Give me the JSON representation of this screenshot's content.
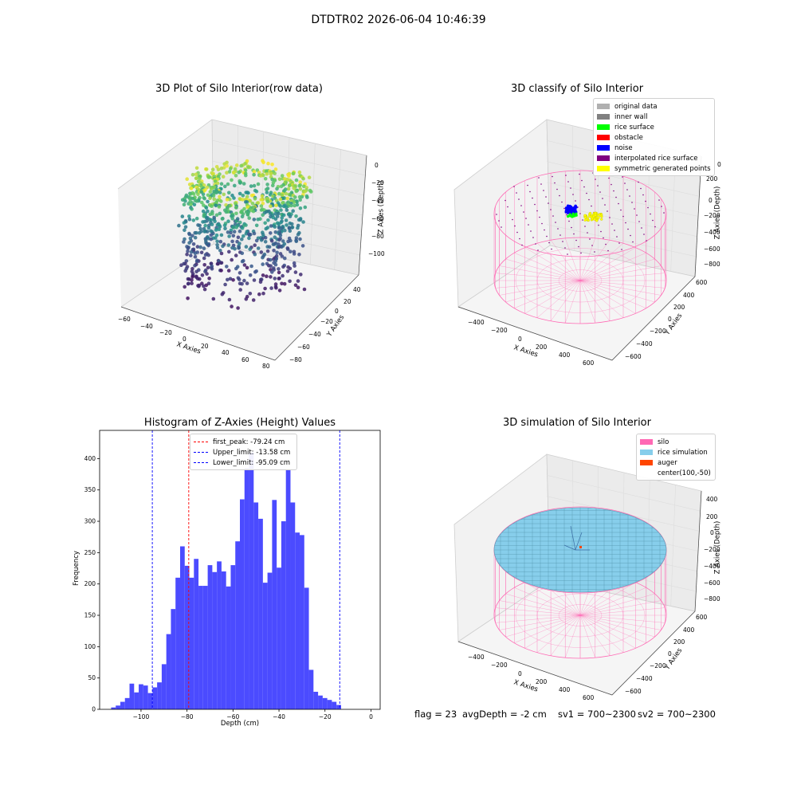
{
  "figure": {
    "suptitle": "DTDTR02 2026-06-04 10:46:39"
  },
  "status": {
    "flag": "flag = 23",
    "avg_depth": "avgDepth = -2 cm",
    "sv1": "sv1 = 700~2300",
    "sv2": "sv2 = 700~2300"
  },
  "colors": {
    "silo": "#ff69b4",
    "rice_simulation": "#87ceeb",
    "auger": "#ff4500",
    "histogram_bar": "#4b4bff",
    "first_peak_line": "#ff0000",
    "limit_line": "#0000ff",
    "original_data": "#b0b0b0",
    "inner_wall": "#808080",
    "rice_surface": "#00ff00",
    "obstacle": "#ff0000",
    "noise": "#0000ff",
    "interpolated_rice_surface": "#800080",
    "symmetric_generated_points": "#ffff00"
  },
  "chart_data": [
    {
      "type": "scatter",
      "title": "3D Plot of Silo Interior(row data)",
      "xlabel": "X Axies",
      "ylabel": "Y Axies",
      "zlabel": "Z Axies (Depth)",
      "x_ticks": [
        "−60",
        "−40",
        "−20",
        "0",
        "20",
        "40",
        "60",
        "80"
      ],
      "y_ticks": [
        "−80",
        "−60",
        "−40",
        "−20",
        "0",
        "20",
        "40"
      ],
      "z_ticks": [
        "0",
        "−20",
        "−40",
        "−60",
        "−80",
        "−100"
      ],
      "xlim": [
        -65,
        85
      ],
      "ylim": [
        -85,
        50
      ],
      "zlim": [
        -115,
        5
      ],
      "colormap": "viridis"
    },
    {
      "type": "scatter",
      "title": "3D classify of Silo Interior",
      "xlabel": "X Axies",
      "ylabel": "Y Axies",
      "zlabel": "Z Axies (Depth)",
      "x_ticks": [
        "−400",
        "−200",
        "0",
        "200",
        "400",
        "600"
      ],
      "y_ticks": [
        "−600",
        "−400",
        "−200",
        "0",
        "200",
        "400",
        "600"
      ],
      "z_ticks": [
        "200",
        "0",
        "−200",
        "−400",
        "−600",
        "−800"
      ],
      "z_top_tick_partial": "0",
      "legend": [
        {
          "label": "original data",
          "color": "#b0b0b0"
        },
        {
          "label": "inner wall",
          "color": "#808080"
        },
        {
          "label": "rice surface",
          "color": "#00ff00"
        },
        {
          "label": "obstacle",
          "color": "#ff0000"
        },
        {
          "label": "noise",
          "color": "#0000ff"
        },
        {
          "label": "interpolated rice surface",
          "color": "#800080"
        },
        {
          "label": "symmetric generated points",
          "color": "#ffff00"
        }
      ]
    },
    {
      "type": "bar",
      "title": "Histogram of Z-Axies (Height) Values",
      "xlabel": "Depth (cm)",
      "ylabel": "Frequency",
      "xlim": [
        -118,
        4
      ],
      "ylim": [
        0,
        445
      ],
      "x_ticks": [
        -100,
        -80,
        -60,
        -40,
        -20,
        0
      ],
      "x_tick_labels": [
        "−100",
        "−80",
        "−60",
        "−40",
        "−20",
        "0"
      ],
      "y_ticks": [
        0,
        50,
        100,
        150,
        200,
        250,
        300,
        350,
        400
      ],
      "y_tick_labels": [
        "0",
        "50",
        "100",
        "150",
        "200",
        "250",
        "300",
        "350",
        "400"
      ],
      "bin_start": -113.0,
      "bin_width": 2.0,
      "values": [
        3,
        6,
        12,
        18,
        41,
        27,
        40,
        38,
        26,
        35,
        43,
        72,
        120,
        160,
        210,
        260,
        229,
        210,
        240,
        197,
        197,
        230,
        219,
        236,
        220,
        196,
        230,
        268,
        335,
        385,
        410,
        330,
        304,
        202,
        218,
        334,
        226,
        300,
        383,
        330,
        282,
        278,
        194,
        63,
        28,
        22,
        18,
        15,
        12,
        7
      ],
      "lines": [
        {
          "label": "first_peak: -79.24 cm",
          "x": -79.24,
          "color": "#ff0000"
        },
        {
          "label": "Upper_limit: -13.58 cm",
          "x": -13.58,
          "color": "#0000ff"
        },
        {
          "label": "Lower_limit: -95.09 cm",
          "x": -95.09,
          "color": "#0000ff"
        }
      ],
      "legend_position": "top-center"
    },
    {
      "type": "surface",
      "title": "3D simulation of Silo Interior",
      "xlabel": "X Axies",
      "ylabel": "Y Axies",
      "zlabel": "Z Axies (Depth)",
      "x_ticks": [
        "−400",
        "−200",
        "0",
        "200",
        "400",
        "600"
      ],
      "y_ticks": [
        "−600",
        "−400",
        "−200",
        "0",
        "200",
        "400",
        "600"
      ],
      "z_ticks": [
        "400",
        "200",
        "0",
        "−200",
        "−400",
        "−600",
        "−800"
      ],
      "legend": [
        {
          "label": "silo",
          "color": "#ff69b4"
        },
        {
          "label": "rice simulation",
          "color": "#87ceeb"
        },
        {
          "label": "auger",
          "color": "#ff4500"
        },
        {
          "label": "center(100,-50)",
          "color": ""
        }
      ]
    }
  ]
}
